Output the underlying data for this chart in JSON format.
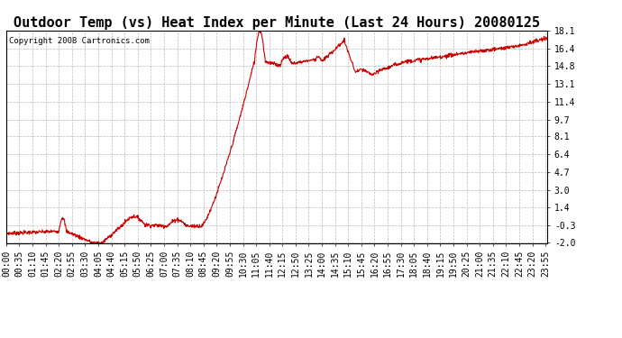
{
  "title": "Outdoor Temp (vs) Heat Index per Minute (Last 24 Hours) 20080125",
  "copyright_text": "Copyright 2008 Cartronics.com",
  "line_color": "#cc0000",
  "background_color": "#ffffff",
  "grid_color": "#aaaaaa",
  "yticks": [
    18.1,
    16.4,
    14.8,
    13.1,
    11.4,
    9.7,
    8.1,
    6.4,
    4.7,
    3.0,
    1.4,
    -0.3,
    -2.0
  ],
  "ymin": -2.0,
  "ymax": 18.1,
  "xtick_labels": [
    "00:00",
    "00:35",
    "01:10",
    "01:45",
    "02:20",
    "02:55",
    "03:30",
    "04:05",
    "04:40",
    "05:15",
    "05:50",
    "06:25",
    "07:00",
    "07:35",
    "08:10",
    "08:45",
    "09:20",
    "09:55",
    "10:30",
    "11:05",
    "11:40",
    "12:15",
    "12:50",
    "13:25",
    "14:00",
    "14:35",
    "15:10",
    "15:45",
    "16:20",
    "16:55",
    "17:30",
    "18:05",
    "18:40",
    "19:15",
    "19:50",
    "20:25",
    "21:00",
    "21:35",
    "22:10",
    "22:45",
    "23:20",
    "23:55"
  ],
  "title_fontsize": 11,
  "copyright_fontsize": 6.5,
  "tick_fontsize": 7
}
